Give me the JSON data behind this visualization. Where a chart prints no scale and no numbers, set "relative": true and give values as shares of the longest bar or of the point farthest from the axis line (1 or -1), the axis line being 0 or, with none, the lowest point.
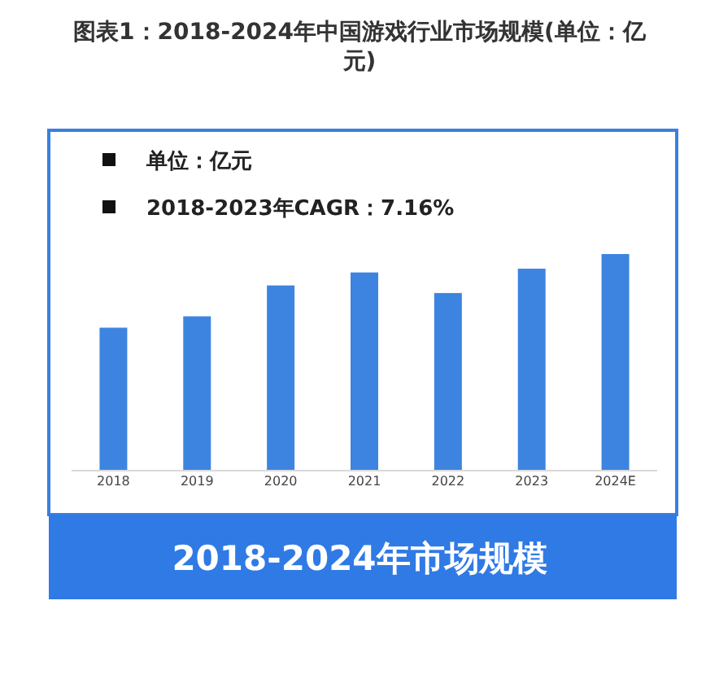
{
  "chart_data": {
    "type": "bar",
    "title": "图表1：2018-2024年中国游戏行业市场规模(单位：亿元)",
    "subtitle": "2018-2024年市场规模",
    "annotations": [
      "单位：亿元",
      "2018-2023年CAGR：7.16%"
    ],
    "categories": [
      "2018",
      "2019",
      "2020",
      "2021",
      "2022",
      "2023",
      "2024E"
    ],
    "values": [
      0.66,
      0.7125,
      0.855,
      0.915,
      0.82,
      0.9325,
      1
    ],
    "color": "#3d84e0",
    "relative": true
  }
}
